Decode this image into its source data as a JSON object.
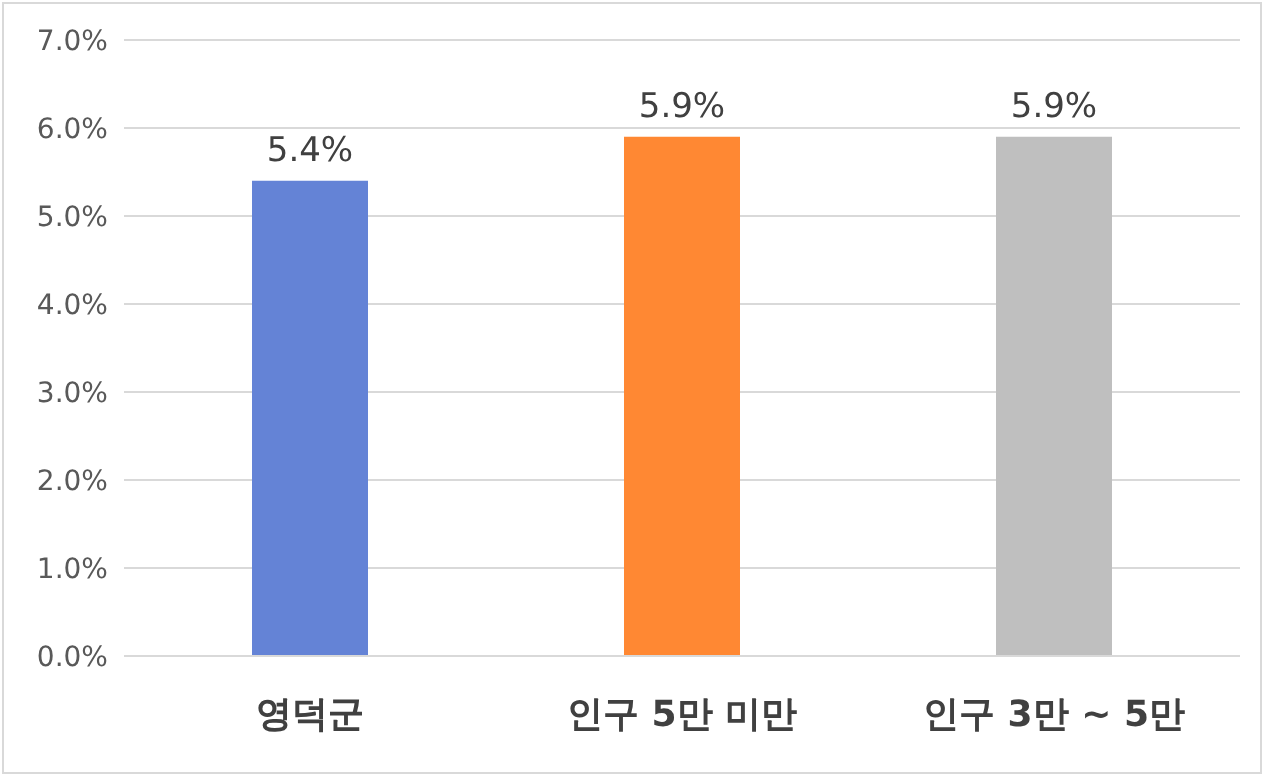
{
  "chart_data": {
    "type": "bar",
    "categories": [
      "영덕군",
      "인구 5만 미만",
      "인구 3만 ~ 5만"
    ],
    "values": [
      5.4,
      5.9,
      5.9
    ],
    "colors": [
      "#6483d6",
      "#ff8833",
      "#bfbfbf"
    ],
    "value_labels": [
      "5.4%",
      "5.9%",
      "5.9%"
    ],
    "ylim": [
      0,
      7
    ],
    "yticks": [
      {
        "value": 0,
        "label": "0.0%"
      },
      {
        "value": 1,
        "label": "1.0%"
      },
      {
        "value": 2,
        "label": "2.0%"
      },
      {
        "value": 3,
        "label": "3.0%"
      },
      {
        "value": 4,
        "label": "4.0%"
      },
      {
        "value": 5,
        "label": "5.0%"
      },
      {
        "value": 6,
        "label": "6.0%"
      },
      {
        "value": 7,
        "label": "7.0%"
      }
    ],
    "grid": "y"
  }
}
